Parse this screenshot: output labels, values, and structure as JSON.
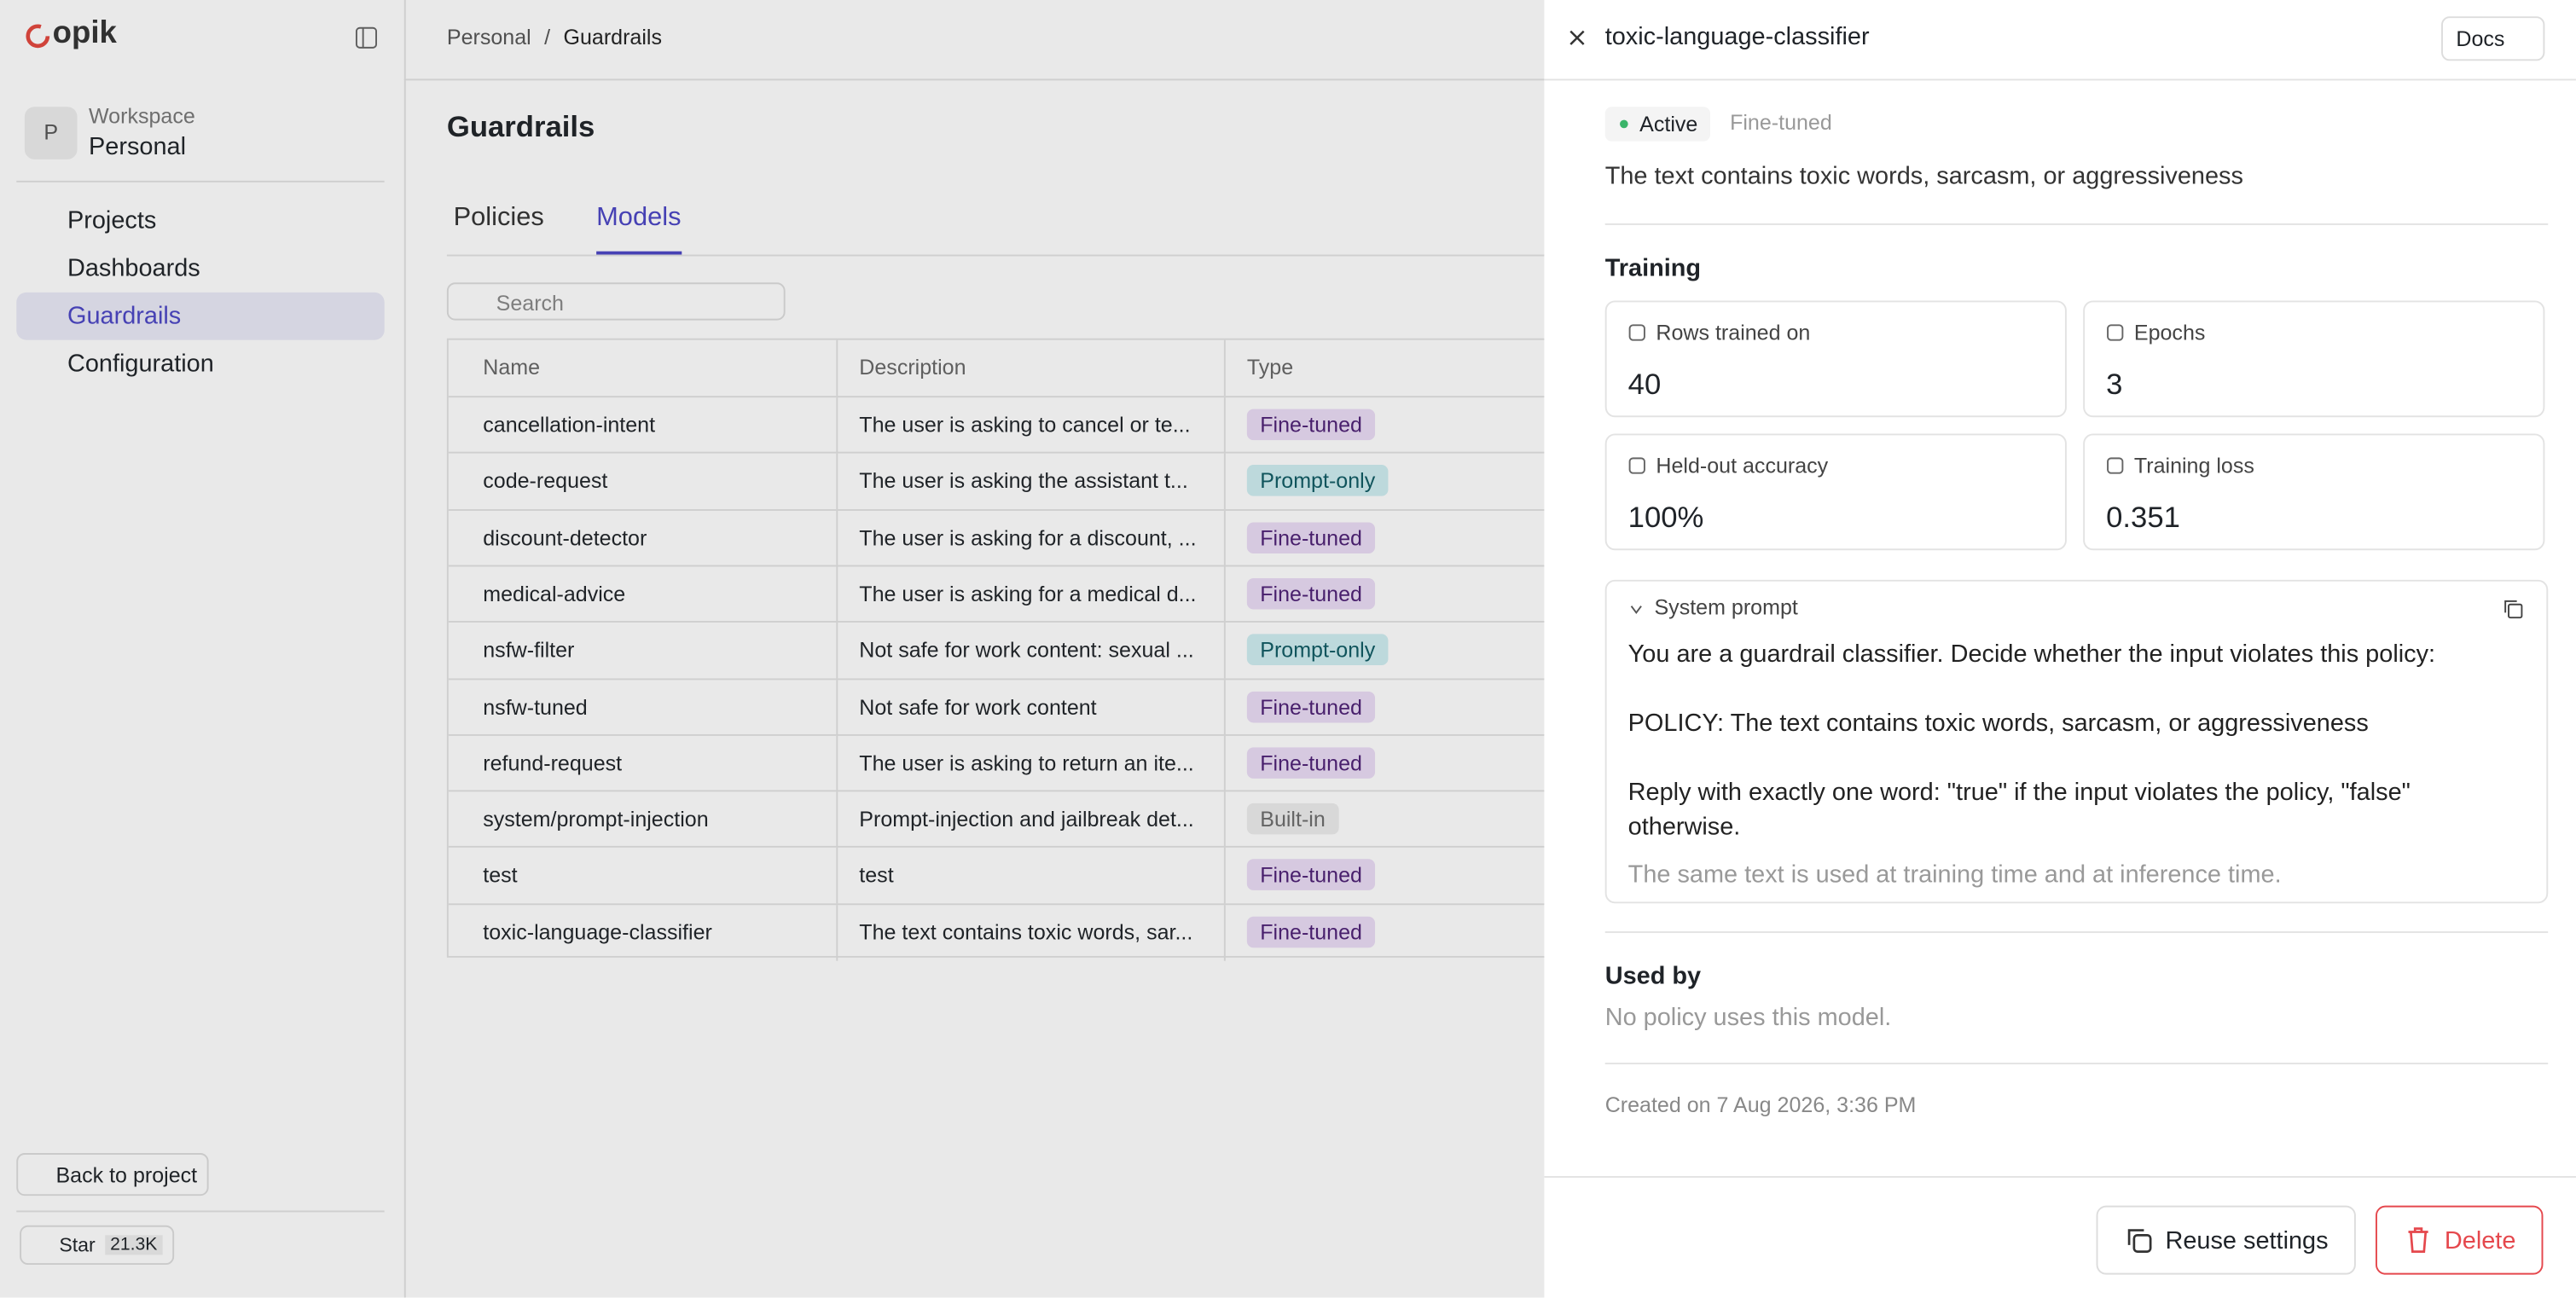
{
  "sidebar": {
    "logo": "opik",
    "avatar": "P",
    "workspace_label": "Workspace",
    "workspace_name": "Personal",
    "nav": [
      "Projects",
      "Dashboards",
      "Guardrails",
      "Configuration"
    ],
    "back": "Back to project",
    "star": "Star",
    "star_count": "21.3K"
  },
  "breadcrumb": [
    "Personal",
    "/",
    "Guardrails"
  ],
  "page": {
    "title": "Guardrails",
    "tabs": [
      "Policies",
      "Models"
    ],
    "search_placeholder": "Search"
  },
  "table": {
    "headers": [
      "Name",
      "Description",
      "Type"
    ],
    "rows": [
      [
        "cancellation-intent",
        "The user is asking to cancel or te...",
        "Fine-tuned"
      ],
      [
        "code-request",
        "The user is asking the assistant t...",
        "Prompt-only"
      ],
      [
        "discount-detector",
        "The user is asking for a discount, ...",
        "Fine-tuned"
      ],
      [
        "medical-advice",
        "The user is asking for a medical d...",
        "Fine-tuned"
      ],
      [
        "nsfw-filter",
        "Not safe for work content: sexual ...",
        "Prompt-only"
      ],
      [
        "nsfw-tuned",
        "Not safe for work content",
        "Fine-tuned"
      ],
      [
        "refund-request",
        "The user is asking to return an ite...",
        "Fine-tuned"
      ],
      [
        "system/prompt-injection",
        "Prompt-injection and jailbreak det...",
        "Built-in"
      ],
      [
        "test",
        "test",
        "Fine-tuned"
      ],
      [
        "toxic-language-classifier",
        "The text contains toxic words, sar...",
        "Fine-tuned"
      ]
    ]
  },
  "drawer": {
    "title": "toxic-language-classifier",
    "docs": "Docs",
    "status": "Active",
    "type": "Fine-tuned",
    "description": "The text contains toxic words, sarcasm, or aggressiveness",
    "training_heading": "Training",
    "stats": [
      {
        "label": "Rows trained on",
        "value": 40
      },
      {
        "label": "Epochs",
        "value": 3
      },
      {
        "label": "Held-out accuracy",
        "value": "100%"
      },
      {
        "label": "Training loss",
        "value": 0.351
      }
    ],
    "system_prompt": {
      "label": "System prompt",
      "lines": [
        "You are a guardrail classifier. Decide whether the input violates this policy:",
        "POLICY: The text contains toxic words, sarcasm, or aggressiveness",
        "Reply with exactly one word: \"true\" if the input violates the policy, \"false\" otherwise."
      ],
      "note": "The same text is used at training time and at inference time."
    },
    "used_by_heading": "Used by",
    "used_by_text": "No policy uses this model.",
    "created": "Created on 7 Aug 2026, 3:36 PM",
    "reuse": "Reuse settings",
    "delete": "Delete"
  }
}
